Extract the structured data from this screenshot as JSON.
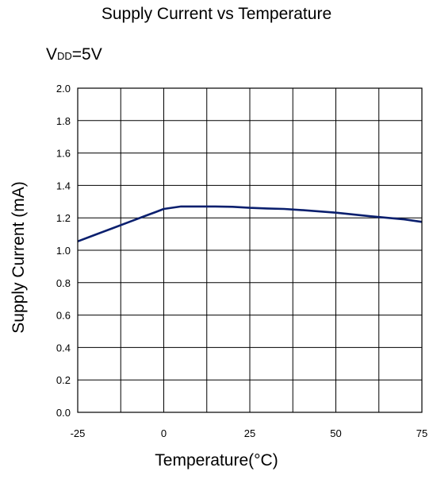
{
  "chart_data": {
    "type": "line",
    "title": "Supply Current vs Temperature",
    "condition": {
      "symbol": "V",
      "subscript": "DD",
      "value": "=5V"
    },
    "xlabel": "Temperature(°C)",
    "ylabel": "Supply Current (mA)",
    "xlim": [
      -25,
      75
    ],
    "ylim": [
      0.0,
      2.0
    ],
    "x_ticks": [
      -25,
      0,
      25,
      50,
      75
    ],
    "x_tick_labels": [
      "-25",
      "0",
      "25",
      "50",
      "75"
    ],
    "y_ticks": [
      0.0,
      0.2,
      0.4,
      0.6,
      0.8,
      1.0,
      1.2,
      1.4,
      1.6,
      1.8,
      2.0
    ],
    "y_tick_labels": [
      "0.0",
      "0.2",
      "0.4",
      "0.6",
      "0.8",
      "1.0",
      "1.2",
      "1.4",
      "1.6",
      "1.8",
      "2.0"
    ],
    "x_grid_step": 12.5,
    "grid": true,
    "line_color": "#0a1f6e",
    "series": [
      {
        "x": [
          -25,
          -20,
          -15,
          -10,
          -5,
          -2.5,
          0,
          5,
          10,
          15,
          20,
          25,
          30,
          35,
          40,
          50,
          60,
          70,
          75
        ],
        "y": [
          1.055,
          1.095,
          1.135,
          1.175,
          1.215,
          1.235,
          1.255,
          1.27,
          1.27,
          1.27,
          1.268,
          1.262,
          1.258,
          1.255,
          1.248,
          1.232,
          1.21,
          1.19,
          1.175
        ]
      }
    ]
  }
}
